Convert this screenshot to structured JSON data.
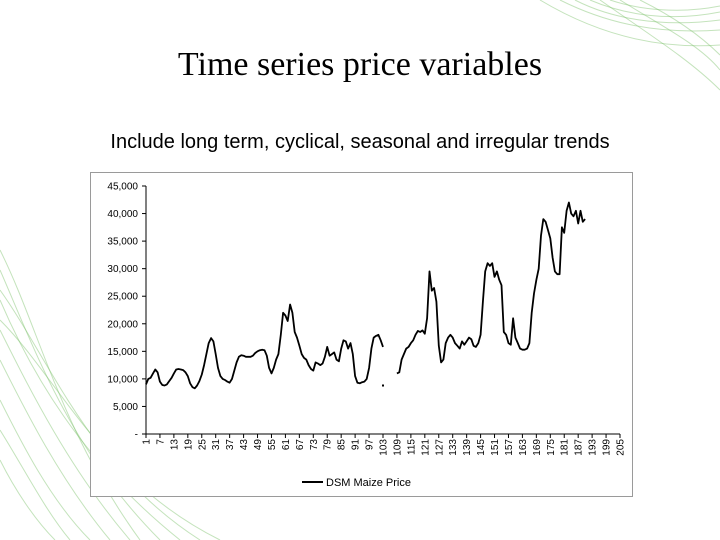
{
  "slide": {
    "title": "Time series price variables",
    "subtitle": "Include long term, cyclical, seasonal and irregular trends"
  },
  "chart_data": {
    "type": "line",
    "title": "",
    "xlabel": "",
    "ylabel": "",
    "ylim": [
      0,
      45000
    ],
    "y_ticks": [
      0,
      5000,
      10000,
      15000,
      20000,
      25000,
      30000,
      35000,
      40000,
      45000
    ],
    "y_tick_labels": [
      "-",
      "5,000",
      "10,000",
      "15,000",
      "20,000",
      "25,000",
      "30,000",
      "35,000",
      "40,000",
      "45,000"
    ],
    "x_ticks": [
      1,
      7,
      13,
      19,
      25,
      31,
      37,
      43,
      49,
      55,
      61,
      67,
      73,
      79,
      85,
      91,
      97,
      103,
      109,
      115,
      121,
      127,
      133,
      139,
      145,
      151,
      157,
      163,
      169,
      175,
      181,
      187,
      193,
      199,
      205
    ],
    "x_range": [
      1,
      205
    ],
    "grid": false,
    "legend_position": "bottom",
    "line_color": "#000000",
    "series": [
      {
        "name": "DSM Maize Price",
        "points": [
          [
            1,
            9000
          ],
          [
            2,
            10000
          ],
          [
            3,
            10200
          ],
          [
            4,
            11000
          ],
          [
            5,
            11700
          ],
          [
            6,
            11200
          ],
          [
            7,
            9500
          ],
          [
            8,
            8900
          ],
          [
            9,
            8800
          ],
          [
            10,
            9000
          ],
          [
            11,
            9600
          ],
          [
            12,
            10200
          ],
          [
            13,
            11000
          ],
          [
            14,
            11700
          ],
          [
            15,
            11800
          ],
          [
            16,
            11700
          ],
          [
            17,
            11600
          ],
          [
            18,
            11200
          ],
          [
            19,
            10500
          ],
          [
            20,
            9200
          ],
          [
            21,
            8500
          ],
          [
            22,
            8300
          ],
          [
            23,
            8800
          ],
          [
            24,
            9600
          ],
          [
            25,
            10800
          ],
          [
            26,
            12500
          ],
          [
            27,
            14500
          ],
          [
            28,
            16500
          ],
          [
            29,
            17400
          ],
          [
            30,
            16800
          ],
          [
            31,
            14500
          ],
          [
            32,
            12000
          ],
          [
            33,
            10500
          ],
          [
            34,
            10000
          ],
          [
            35,
            9800
          ],
          [
            36,
            9500
          ],
          [
            37,
            9300
          ],
          [
            38,
            10000
          ],
          [
            39,
            11500
          ],
          [
            40,
            13000
          ],
          [
            41,
            14000
          ],
          [
            42,
            14300
          ],
          [
            43,
            14200
          ],
          [
            44,
            14000
          ],
          [
            45,
            14000
          ],
          [
            46,
            14000
          ],
          [
            47,
            14200
          ],
          [
            48,
            14700
          ],
          [
            49,
            15000
          ],
          [
            50,
            15200
          ],
          [
            51,
            15300
          ],
          [
            52,
            15200
          ],
          [
            53,
            14200
          ],
          [
            54,
            12000
          ],
          [
            55,
            11000
          ],
          [
            56,
            12000
          ],
          [
            57,
            13500
          ],
          [
            58,
            14500
          ],
          [
            59,
            18000
          ],
          [
            60,
            22000
          ],
          [
            61,
            21500
          ],
          [
            62,
            20500
          ],
          [
            63,
            23500
          ],
          [
            64,
            22000
          ],
          [
            65,
            18500
          ],
          [
            66,
            17500
          ],
          [
            67,
            16000
          ],
          [
            68,
            14500
          ],
          [
            69,
            13800
          ],
          [
            70,
            13500
          ],
          [
            71,
            12500
          ],
          [
            72,
            11800
          ],
          [
            73,
            11500
          ],
          [
            74,
            13000
          ],
          [
            75,
            12800
          ],
          [
            76,
            12500
          ],
          [
            77,
            12800
          ],
          [
            78,
            14000
          ],
          [
            79,
            15800
          ],
          [
            80,
            14200
          ],
          [
            81,
            14500
          ],
          [
            82,
            14800
          ],
          [
            83,
            13500
          ],
          [
            84,
            13200
          ],
          [
            85,
            15500
          ],
          [
            86,
            17000
          ],
          [
            87,
            16800
          ],
          [
            88,
            15500
          ],
          [
            89,
            16500
          ],
          [
            90,
            14500
          ],
          [
            91,
            10500
          ],
          [
            92,
            9300
          ],
          [
            93,
            9200
          ],
          [
            94,
            9400
          ],
          [
            95,
            9500
          ],
          [
            96,
            10000
          ],
          [
            97,
            12000
          ],
          [
            98,
            15500
          ],
          [
            99,
            17500
          ],
          [
            100,
            17800
          ],
          [
            101,
            18000
          ],
          [
            102,
            17000
          ],
          [
            103,
            15800
          ],
          [
            104,
            null
          ],
          [
            105,
            null
          ],
          [
            106,
            null
          ],
          [
            107,
            null
          ],
          [
            108,
            null
          ],
          [
            109,
            11000
          ],
          [
            110,
            11200
          ],
          [
            111,
            13500
          ],
          [
            112,
            14500
          ],
          [
            113,
            15500
          ],
          [
            114,
            15800
          ],
          [
            115,
            16500
          ],
          [
            116,
            17000
          ],
          [
            117,
            18000
          ],
          [
            118,
            18700
          ],
          [
            119,
            18500
          ],
          [
            120,
            18800
          ],
          [
            121,
            18200
          ],
          [
            122,
            21000
          ],
          [
            123,
            29500
          ],
          [
            124,
            26000
          ],
          [
            125,
            26500
          ],
          [
            126,
            24000
          ],
          [
            127,
            16000
          ],
          [
            128,
            13000
          ],
          [
            129,
            13500
          ],
          [
            130,
            16500
          ],
          [
            131,
            17500
          ],
          [
            132,
            18000
          ],
          [
            133,
            17500
          ],
          [
            134,
            16500
          ],
          [
            135,
            16000
          ],
          [
            136,
            15500
          ],
          [
            137,
            16800
          ],
          [
            138,
            16200
          ],
          [
            139,
            16800
          ],
          [
            140,
            17500
          ],
          [
            141,
            17200
          ],
          [
            142,
            16000
          ],
          [
            143,
            15800
          ],
          [
            144,
            16500
          ],
          [
            145,
            18000
          ],
          [
            146,
            24000
          ],
          [
            147,
            29500
          ],
          [
            148,
            31000
          ],
          [
            149,
            30500
          ],
          [
            150,
            31000
          ],
          [
            151,
            28500
          ],
          [
            152,
            29500
          ],
          [
            153,
            28000
          ],
          [
            154,
            27000
          ],
          [
            155,
            18500
          ],
          [
            156,
            18000
          ],
          [
            157,
            16500
          ],
          [
            158,
            16200
          ],
          [
            159,
            21000
          ],
          [
            160,
            17500
          ],
          [
            161,
            16500
          ],
          [
            162,
            15500
          ],
          [
            163,
            15300
          ],
          [
            164,
            15300
          ],
          [
            165,
            15500
          ],
          [
            166,
            16500
          ],
          [
            167,
            22000
          ],
          [
            168,
            25500
          ],
          [
            169,
            28000
          ],
          [
            170,
            30000
          ],
          [
            171,
            36000
          ],
          [
            172,
            39000
          ],
          [
            173,
            38500
          ],
          [
            174,
            37000
          ],
          [
            175,
            35500
          ],
          [
            176,
            32000
          ],
          [
            177,
            29500
          ],
          [
            178,
            29000
          ],
          [
            179,
            29000
          ],
          [
            180,
            37500
          ],
          [
            181,
            36500
          ],
          [
            182,
            40500
          ],
          [
            183,
            42000
          ],
          [
            184,
            40000
          ],
          [
            185,
            39500
          ],
          [
            186,
            40500
          ],
          [
            187,
            38200
          ],
          [
            188,
            40500
          ],
          [
            189,
            38500
          ],
          [
            190,
            39000
          ]
        ],
        "isolated_points": [
          [
            103,
            8800
          ]
        ]
      }
    ]
  }
}
